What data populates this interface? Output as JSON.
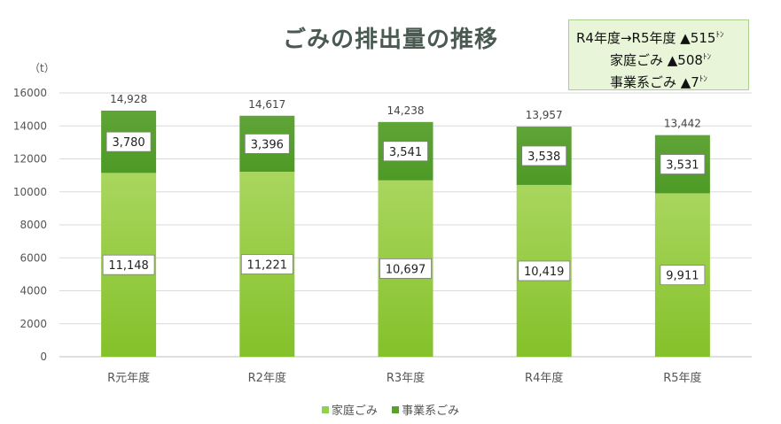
{
  "note": {
    "line1": "R4年度→R5年度 ▲515",
    "line2": "家庭ごみ ▲508",
    "line3": "事業系ごみ ▲7",
    "unit": "ﾄﾝ"
  },
  "colors": {
    "household": "#92d050",
    "household_light": "#a9d65e",
    "business": "#5aa02c",
    "business_light": "#70ad47",
    "note_bg": "#e8f5d9",
    "note_border": "#a9d08e"
  },
  "chart_data": {
    "type": "bar",
    "stacked": true,
    "title": "ごみの排出量の推移",
    "ylabel": "（t）",
    "xlabel": "",
    "ylim": [
      0,
      16000
    ],
    "yticks": [
      0,
      2000,
      4000,
      6000,
      8000,
      10000,
      12000,
      14000,
      16000
    ],
    "grid": true,
    "legend_position": "bottom",
    "categories": [
      "R元年度",
      "R2年度",
      "R3年度",
      "R4年度",
      "R5年度"
    ],
    "series": [
      {
        "name": "家庭ごみ",
        "values": [
          11148,
          11221,
          10697,
          10419,
          9911
        ],
        "labels": [
          "11,148",
          "11,221",
          "10,697",
          "10,419",
          "9,911"
        ]
      },
      {
        "name": "事業系ごみ",
        "values": [
          3780,
          3396,
          3541,
          3538,
          3531
        ],
        "labels": [
          "3,780",
          "3,396",
          "3,541",
          "3,538",
          "3,531"
        ]
      }
    ],
    "totals": [
      14928,
      14617,
      14238,
      13957,
      13442
    ],
    "total_labels": [
      "14,928",
      "14,617",
      "14,238",
      "13,957",
      "13,442"
    ]
  }
}
